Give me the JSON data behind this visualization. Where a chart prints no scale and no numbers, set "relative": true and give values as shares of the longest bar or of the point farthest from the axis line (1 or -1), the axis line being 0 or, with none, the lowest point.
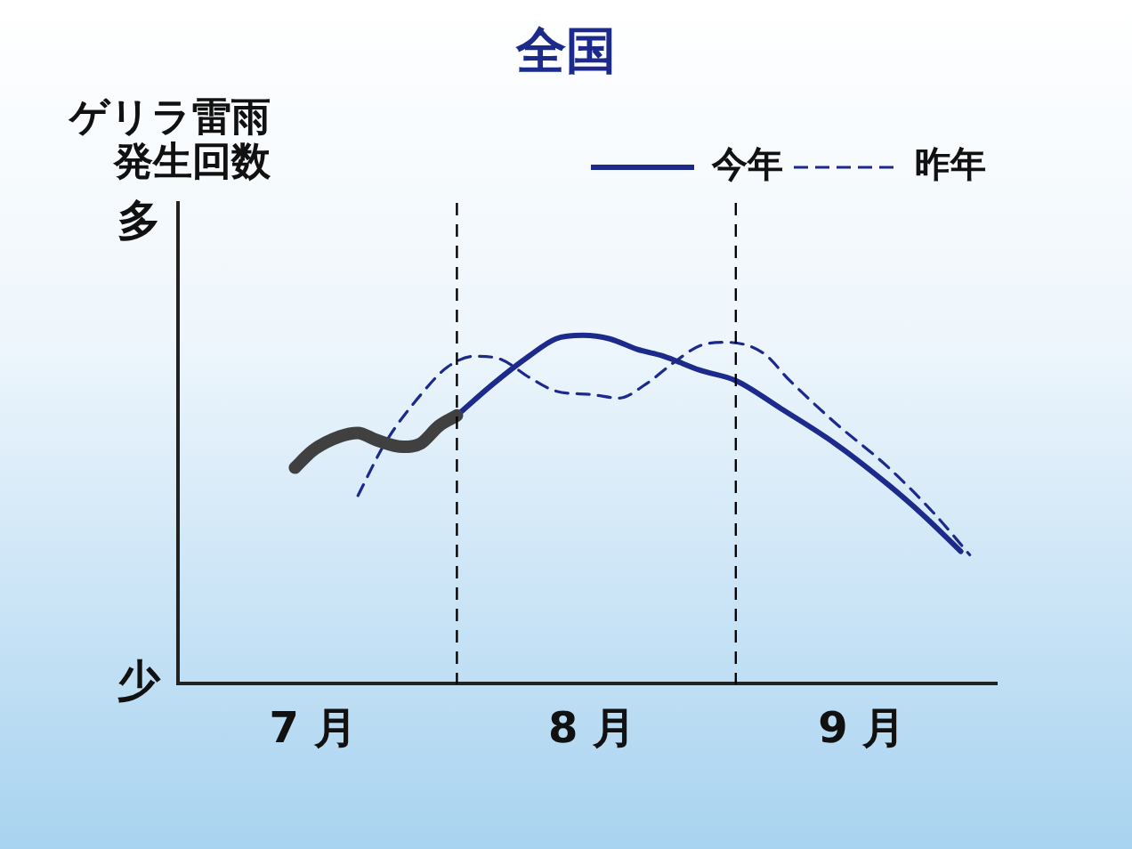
{
  "chart_data": {
    "type": "line",
    "title": "全国",
    "ylabel": "ゲリラ雷雨発生回数",
    "relative": true,
    "xlim": [
      "--07-01",
      "--09-30"
    ],
    "xticks": [
      {
        "value": "--07-16",
        "label": "7 月"
      },
      {
        "value": "--08-16",
        "label": "8 月"
      },
      {
        "value": "--09-15",
        "label": "9 月"
      }
    ],
    "series": [
      {
        "color": "#404040",
        "x": [
          "--07-14",
          "--07-16",
          "--07-19",
          "--07-21",
          "--07-23",
          "--07-26",
          "--07-28",
          "--07-30",
          "--08-01"
        ],
        "values": [
          0.62,
          0.67,
          0.71,
          0.72,
          0.7,
          0.68,
          0.69,
          0.74,
          0.77
        ]
      },
      {
        "name": "今年",
        "color": "#1c2a8c",
        "line_style": "solid",
        "x": [
          "--08-01",
          "--08-05",
          "--08-09",
          "--08-12",
          "--08-15",
          "--08-18",
          "--08-21",
          "--08-24",
          "--08-28",
          "--09-01",
          "--09-06",
          "--09-12",
          "--09-18",
          "--09-22",
          "--09-26"
        ],
        "values": [
          0.77,
          0.86,
          0.94,
          0.99,
          1,
          0.99,
          0.96,
          0.94,
          0.9,
          0.87,
          0.79,
          0.69,
          0.57,
          0.48,
          0.38
        ]
      },
      {
        "name": "昨年",
        "color": "#1c2a8c",
        "line_style": "dashed",
        "x": [
          "--07-21",
          "--07-24",
          "--07-28",
          "--07-31",
          "--08-03",
          "--08-06",
          "--08-09",
          "--08-12",
          "--08-16",
          "--08-19",
          "--08-22",
          "--08-25",
          "--08-28",
          "--08-31",
          "--09-04",
          "--09-07",
          "--09-12",
          "--09-18",
          "--09-23",
          "--09-27"
        ],
        "values": [
          0.54,
          0.69,
          0.83,
          0.91,
          0.94,
          0.93,
          0.88,
          0.84,
          0.83,
          0.82,
          0.86,
          0.92,
          0.97,
          0.98,
          0.95,
          0.87,
          0.75,
          0.62,
          0.49,
          0.37
        ]
      }
    ],
    "ref_lines": [
      {
        "axis": "x",
        "value": "--08-01",
        "color": "#000000",
        "line_style": "dashed"
      },
      {
        "axis": "x",
        "value": "--09-01",
        "color": "#000000",
        "line_style": "dashed"
      }
    ],
    "annotations": [
      "多",
      "少"
    ],
    "grid": false,
    "legend": "top right",
    "marker": "none"
  }
}
